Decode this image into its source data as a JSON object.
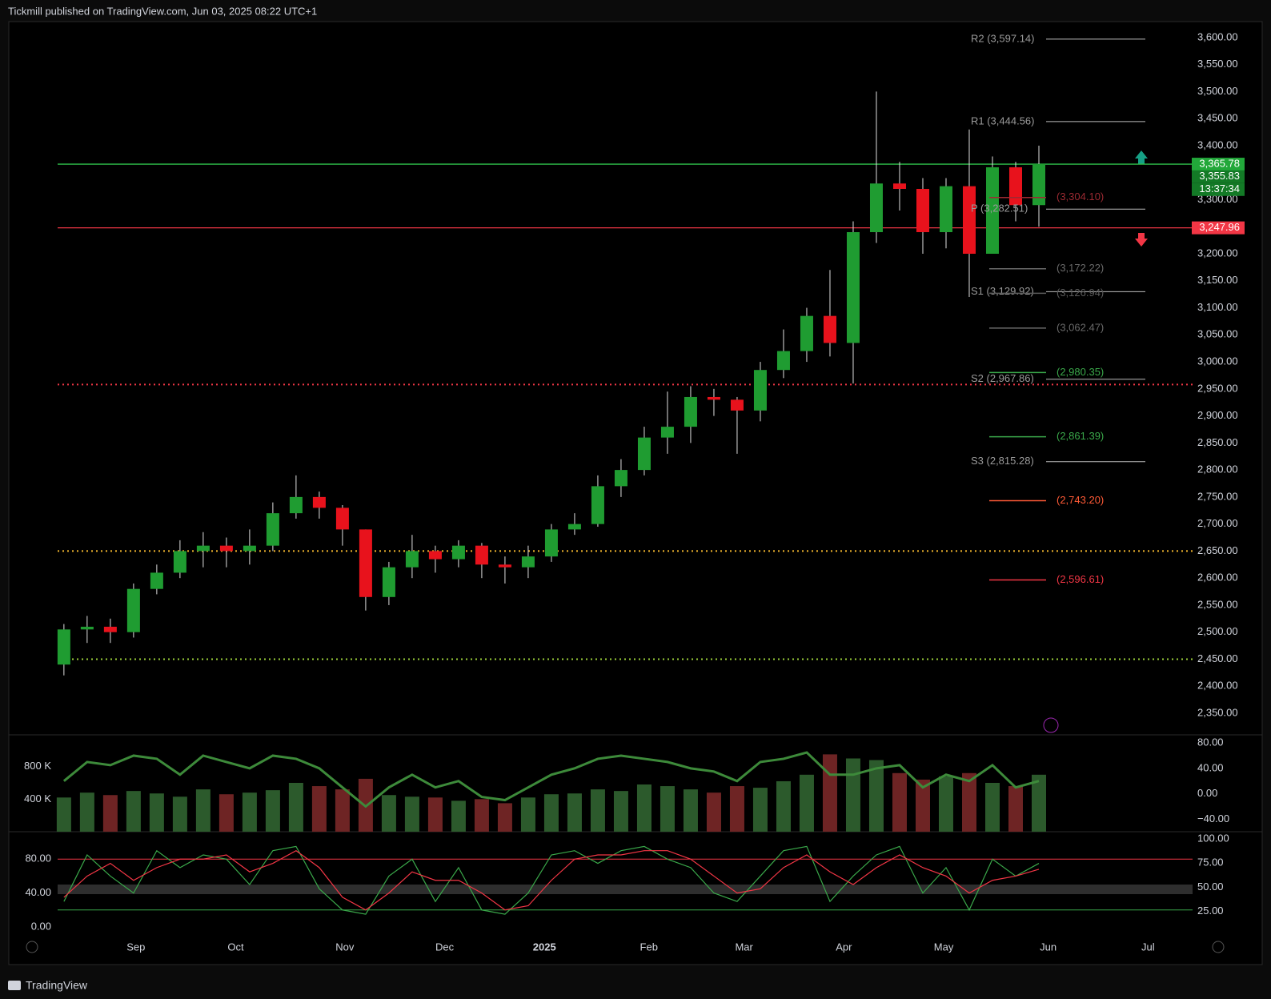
{
  "header": {
    "title": "Tickmill published on TradingView.com, Jun 03, 2025 08:22 UTC+1"
  },
  "chart_data": [
    {
      "type": "candlestick",
      "up_color": "#1f9c31",
      "down_color": "#e8121c",
      "xlim": [
        -2.34,
        48.62
      ],
      "xticks": [
        {
          "value": 3.1,
          "label": "Sep"
        },
        {
          "value": 7.4,
          "label": "Oct"
        },
        {
          "value": 12.1,
          "label": "Nov"
        },
        {
          "value": 16.4,
          "label": "Dec"
        },
        {
          "value": 20.7,
          "label": "2025"
        },
        {
          "value": 25.2,
          "label": "Feb"
        },
        {
          "value": 29.3,
          "label": "Mar"
        },
        {
          "value": 33.6,
          "label": "Apr"
        },
        {
          "value": 37.9,
          "label": "May"
        },
        {
          "value": 42.4,
          "label": "Jun"
        },
        {
          "value": 46.7,
          "label": "Jul"
        }
      ],
      "ylim": [
        2310,
        3628
      ],
      "yticks": [
        {
          "value": 2350,
          "label": "2,350.00"
        },
        {
          "value": 2400,
          "label": "2,400.00"
        },
        {
          "value": 2450,
          "label": "2,450.00"
        },
        {
          "value": 2500,
          "label": "2,500.00"
        },
        {
          "value": 2550,
          "label": "2,550.00"
        },
        {
          "value": 2600,
          "label": "2,600.00"
        },
        {
          "value": 2650,
          "label": "2,650.00"
        },
        {
          "value": 2700,
          "label": "2,700.00"
        },
        {
          "value": 2750,
          "label": "2,750.00"
        },
        {
          "value": 2800,
          "label": "2,800.00"
        },
        {
          "value": 2850,
          "label": "2,850.00"
        },
        {
          "value": 2900,
          "label": "2,900.00"
        },
        {
          "value": 2950,
          "label": "2,950.00"
        },
        {
          "value": 3000,
          "label": "3,000.00"
        },
        {
          "value": 3050,
          "label": "3,050.00"
        },
        {
          "value": 3100,
          "label": "3,100.00"
        },
        {
          "value": 3150,
          "label": "3,150.00"
        },
        {
          "value": 3200,
          "label": "3,200.00"
        },
        {
          "value": 3250,
          "label": "3,250.00"
        },
        {
          "value": 3300,
          "label": "3,300.00"
        },
        {
          "value": 3350,
          "label": "3,350.00"
        },
        {
          "value": 3400,
          "label": "3,400.00"
        },
        {
          "value": 3450,
          "label": "3,450.00"
        },
        {
          "value": 3500,
          "label": "3,500.00"
        },
        {
          "value": 3550,
          "label": "3,550.00"
        },
        {
          "value": 3600,
          "label": "3,600.00"
        }
      ],
      "open": [
        2440,
        2505,
        2510,
        2500,
        2580,
        2610,
        2650,
        2660,
        2650,
        2660,
        2720,
        2750,
        2730,
        2690,
        2565,
        2620,
        2650,
        2635,
        2660,
        2625,
        2620,
        2640,
        2690,
        2700,
        2770,
        2800,
        2860,
        2880,
        2935,
        2930,
        2910,
        2985,
        3020,
        3085,
        3035,
        3240,
        3330,
        3320,
        3240,
        3325,
        3200,
        3360,
        3290
      ],
      "high": [
        2515,
        2530,
        2525,
        2590,
        2625,
        2670,
        2685,
        2675,
        2690,
        2740,
        2790,
        2760,
        2735,
        2690,
        2630,
        2680,
        2660,
        2670,
        2665,
        2640,
        2660,
        2700,
        2720,
        2790,
        2820,
        2880,
        2945,
        2955,
        2950,
        2935,
        3000,
        3060,
        3100,
        3170,
        3260,
        3500,
        3370,
        3340,
        3340,
        3430,
        3380,
        3370,
        3400
      ],
      "low": [
        2420,
        2480,
        2480,
        2490,
        2570,
        2600,
        2620,
        2620,
        2625,
        2650,
        2710,
        2710,
        2660,
        2540,
        2550,
        2600,
        2610,
        2620,
        2600,
        2590,
        2600,
        2630,
        2680,
        2695,
        2750,
        2790,
        2830,
        2850,
        2900,
        2830,
        2890,
        2970,
        3000,
        3010,
        2960,
        3220,
        3280,
        3200,
        3210,
        3120,
        3200,
        3260,
        3250
      ],
      "close": [
        2505,
        2510,
        2500,
        2580,
        2610,
        2650,
        2660,
        2650,
        2660,
        2720,
        2750,
        2730,
        2690,
        2565,
        2620,
        2650,
        2635,
        2660,
        2625,
        2620,
        2640,
        2690,
        2700,
        2770,
        2800,
        2860,
        2880,
        2935,
        2930,
        2910,
        2985,
        3020,
        3085,
        3035,
        3240,
        3330,
        3320,
        3240,
        3325,
        3200,
        3360,
        3290,
        3366
      ],
      "hlines": [
        {
          "value": 3365.78,
          "color": "#2fbf4a",
          "dash": false
        },
        {
          "value": 3247.96,
          "color": "#f23645",
          "dash": false
        },
        {
          "value": 2958,
          "color": "#f23645",
          "dash": true
        },
        {
          "value": 2650,
          "color": "#f5b82e",
          "dash": true
        },
        {
          "value": 2450,
          "color": "#9bd03a",
          "dash": true
        }
      ],
      "pivots": [
        {
          "label": "R2 (3,597.14)",
          "value": 3597.14
        },
        {
          "label": "R1 (3,444.56)",
          "value": 3444.56
        },
        {
          "label": "P (3,282.51)",
          "value": 3282.51
        },
        {
          "label": "S1 (3,129.92)",
          "value": 3129.92
        },
        {
          "label": "S2 (2,967.86)",
          "value": 2967.86
        },
        {
          "label": "S3 (2,815.28)",
          "value": 2815.28
        }
      ],
      "levels": [
        {
          "label": "(3,304.10)",
          "value": 3304.1,
          "color": "#9c2a32"
        },
        {
          "label": "(3,172.22)",
          "value": 3172.22,
          "color": "#6a6a6a"
        },
        {
          "label": "(3,126.94)",
          "value": 3126.94,
          "color": "#5a5a5a"
        },
        {
          "label": "(3,062.47)",
          "value": 3062.47,
          "color": "#6a6a6a"
        },
        {
          "label": "(2,980.35)",
          "value": 2980.35,
          "color": "#3aa84a"
        },
        {
          "label": "(2,861.39)",
          "value": 2861.39,
          "color": "#3aa84a"
        },
        {
          "label": "(2,743.20)",
          "value": 2743.2,
          "color": "#ff5a36"
        },
        {
          "label": "(2,596.61)",
          "value": 2596.61,
          "color": "#f23645"
        }
      ],
      "price_labels": [
        {
          "label": "3,365.78",
          "value": 3365.78,
          "color": "#22a83a"
        },
        {
          "label": "3,355.83",
          "value": 3355.83,
          "color": "#137a26"
        },
        {
          "label": "3,247.96",
          "value": 3247.96,
          "color": "#f23645"
        }
      ],
      "countdown": "13:37:34"
    },
    {
      "type": "bar",
      "ylim": [
        0,
        1190000
      ],
      "yticks": [
        {
          "value": 400000,
          "label": "400 K"
        },
        {
          "value": 800000,
          "label": "800 K"
        }
      ],
      "values": [
        420000,
        480000,
        450000,
        500000,
        470000,
        430000,
        520000,
        460000,
        480000,
        510000,
        600000,
        560000,
        520000,
        650000,
        450000,
        430000,
        420000,
        380000,
        400000,
        350000,
        420000,
        460000,
        470000,
        520000,
        500000,
        580000,
        560000,
        520000,
        480000,
        560000,
        540000,
        620000,
        700000,
        950000,
        900000,
        880000,
        720000,
        640000,
        680000,
        720000,
        600000,
        560000,
        700000
      ],
      "y2lim": [
        -59.7,
        92.7
      ],
      "y2ticks": [
        {
          "value": 80,
          "label": "80.00"
        },
        {
          "value": 40,
          "label": "40.00"
        },
        {
          "value": 0,
          "label": "0.00"
        },
        {
          "value": -40,
          "label": "−40.00"
        }
      ],
      "series": [
        {
          "axis": "y2",
          "up_color": "#3d8a3a",
          "down_color": "#c8322e",
          "values": [
            20,
            50,
            45,
            60,
            55,
            30,
            60,
            50,
            40,
            60,
            55,
            40,
            10,
            -20,
            10,
            30,
            10,
            20,
            -5,
            -10,
            10,
            30,
            40,
            55,
            60,
            55,
            50,
            40,
            35,
            20,
            50,
            55,
            65,
            30,
            30,
            40,
            45,
            10,
            30,
            20,
            45,
            10,
            20
          ]
        }
      ]
    },
    {
      "type": "line",
      "ylim": [
        -11.4,
        112.4
      ],
      "yticks": [
        {
          "value": 0,
          "label": "0.00"
        },
        {
          "value": 40,
          "label": "40.00"
        },
        {
          "value": 80,
          "label": "80.00"
        }
      ],
      "y2lim": [
        -0.8,
        107.5
      ],
      "y2ticks": [
        {
          "value": 25,
          "label": "25.00"
        },
        {
          "value": 50,
          "label": "50.00"
        },
        {
          "value": 75,
          "label": "75.00"
        },
        {
          "value": 100,
          "label": "100.00"
        }
      ],
      "hlines": [
        {
          "value": 80,
          "color": "#f23645"
        },
        {
          "value": 20,
          "color": "#3aa84a"
        }
      ],
      "series": [
        {
          "color": "#3aa84a",
          "values": [
            30,
            85,
            60,
            40,
            90,
            70,
            85,
            80,
            50,
            90,
            95,
            45,
            20,
            15,
            60,
            80,
            30,
            70,
            20,
            15,
            40,
            85,
            90,
            75,
            90,
            95,
            80,
            70,
            40,
            30,
            60,
            90,
            95,
            30,
            60,
            85,
            95,
            40,
            70,
            20,
            80,
            60,
            75
          ]
        },
        {
          "color": "#f23645",
          "values": [
            35,
            60,
            75,
            55,
            70,
            80,
            80,
            85,
            65,
            75,
            90,
            70,
            35,
            20,
            40,
            65,
            55,
            55,
            40,
            20,
            25,
            55,
            80,
            85,
            85,
            90,
            90,
            80,
            60,
            40,
            45,
            70,
            85,
            65,
            50,
            70,
            85,
            70,
            60,
            40,
            55,
            60,
            68
          ]
        }
      ]
    }
  ],
  "footer": {
    "brand": "TradingView"
  }
}
